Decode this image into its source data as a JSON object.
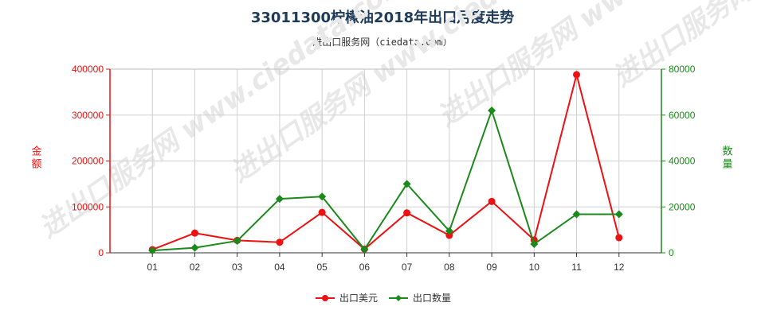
{
  "chart_data": {
    "type": "line",
    "title": "33011300柠檬油2018年出口月度走势",
    "subtitle": "进出口服务网（ciedata.com）",
    "categories": [
      "01",
      "02",
      "03",
      "04",
      "05",
      "06",
      "07",
      "08",
      "09",
      "10",
      "11",
      "12"
    ],
    "series": [
      {
        "name": "出口美元",
        "axis": "left",
        "color": "#ee1111",
        "values": [
          7000,
          43000,
          27000,
          23000,
          88000,
          8000,
          87000,
          38000,
          112000,
          28000,
          388000,
          33000
        ]
      },
      {
        "name": "出口数量",
        "axis": "right",
        "color": "#1a8a1a",
        "values": [
          1000,
          2200,
          5200,
          23500,
          24500,
          1500,
          30000,
          9500,
          62000,
          3800,
          16800,
          16800
        ]
      }
    ],
    "ylabel_left": "金额",
    "ylabel_right": "数量",
    "ylim_left": [
      0,
      400000
    ],
    "ylim_right": [
      0,
      80000
    ],
    "yticks_left": [
      "0",
      "100000",
      "200000",
      "300000",
      "400000"
    ],
    "yticks_right": [
      "0",
      "20000",
      "40000",
      "60000",
      "80000"
    ],
    "left_axis_color": "#ee1111",
    "right_axis_color": "#1a8a1a",
    "grid": true,
    "legend_position": "bottom-center",
    "watermark": "进出口服务网 www.ciedata.com"
  }
}
